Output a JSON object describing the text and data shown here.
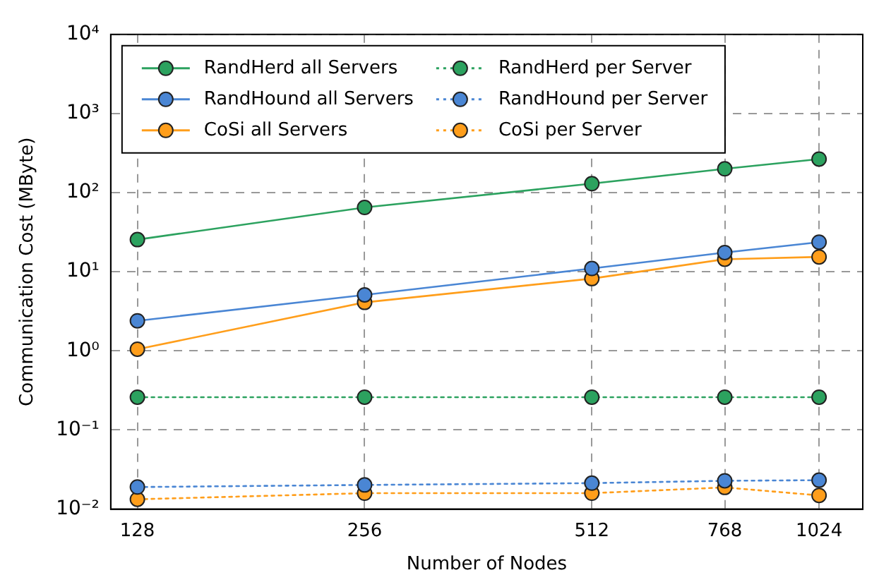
{
  "chart_data": {
    "type": "line",
    "xlabel": "Number of Nodes",
    "ylabel": "Communication Cost (MByte)",
    "x": [
      128,
      256,
      512,
      768,
      1024
    ],
    "series": [
      {
        "name": "RandHerd all Servers",
        "color": "#2ca25f",
        "line_style": "solid",
        "values": [
          25.5,
          65,
          130,
          200,
          266
        ]
      },
      {
        "name": "RandHound all Servers",
        "color": "#4a86d4",
        "line_style": "solid",
        "values": [
          2.4,
          5.1,
          11,
          17.5,
          23.7
        ]
      },
      {
        "name": "CoSi all Servers",
        "color": "#ff9e1b",
        "line_style": "solid",
        "values": [
          1.05,
          4.1,
          8.2,
          14.4,
          15.4
        ]
      },
      {
        "name": "RandHerd per Server",
        "color": "#2ca25f",
        "line_style": "dotted",
        "values": [
          0.26,
          0.26,
          0.26,
          0.26,
          0.26
        ]
      },
      {
        "name": "RandHound per Server",
        "color": "#4a86d4",
        "line_style": "dotted",
        "values": [
          0.019,
          0.0202,
          0.0213,
          0.0228,
          0.0232
        ]
      },
      {
        "name": "CoSi per Server",
        "color": "#ff9e1b",
        "line_style": "dotted",
        "values": [
          0.0133,
          0.0159,
          0.0159,
          0.0188,
          0.0149
        ]
      }
    ],
    "log": "xy",
    "xlim": [
      118,
      1170
    ],
    "xticks": [
      128,
      256,
      512,
      768,
      1024
    ],
    "ylim": [
      0.01,
      10000
    ],
    "yticks": [
      {
        "value": 0.01,
        "label": "10⁻²"
      },
      {
        "value": 0.1,
        "label": "10⁻¹"
      },
      {
        "value": 1,
        "label": "10⁰"
      },
      {
        "value": 10,
        "label": "10¹"
      },
      {
        "value": 100,
        "label": "10²"
      },
      {
        "value": 1000,
        "label": "10³"
      },
      {
        "value": 10000,
        "label": "10⁴"
      }
    ],
    "grid": true,
    "legend": "top left",
    "marker": "circle"
  }
}
